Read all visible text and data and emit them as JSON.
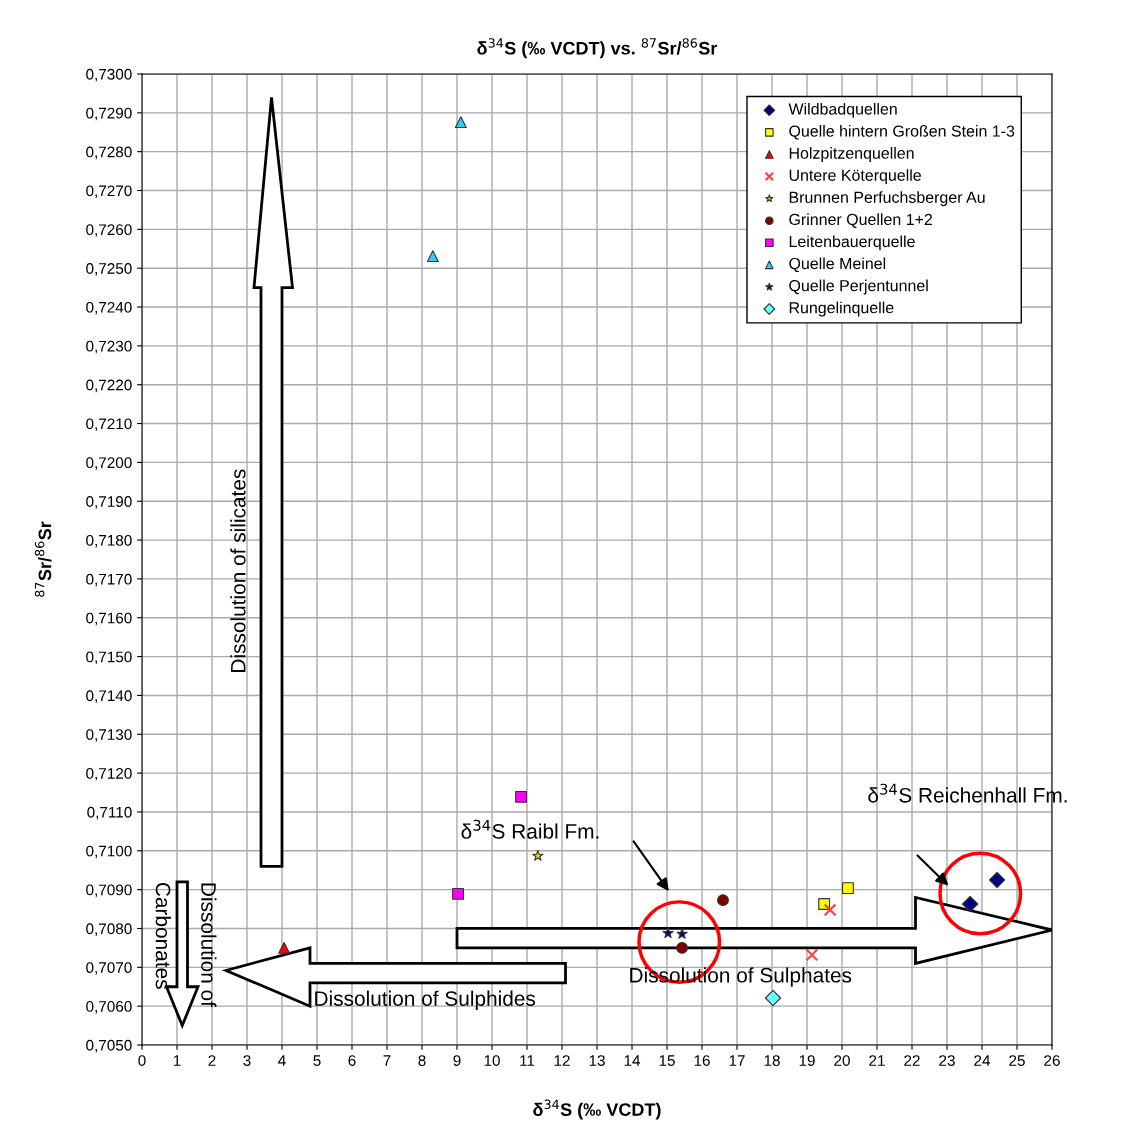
{
  "chart_data": {
    "type": "scatter",
    "title": "δ$^{34}$S (‰ VCDT) vs. $^{87}$Sr/$^{86}$Sr",
    "xlabel": "δ$^{34}$S (‰ VCDT)",
    "ylabel": "$^{87}$Sr/$^{86}$Sr",
    "series": [
      {
        "name": "Wildbadquellen",
        "color": "#000080",
        "marker": "diamond",
        "x": [
          23.66,
          24.43
        ],
        "values": [
          0.70863,
          0.70925
        ]
      },
      {
        "name": "Quelle hintern Großen Stein 1-3",
        "color": "#ffff00",
        "marker": "square",
        "x": [
          19.49,
          20.17
        ],
        "values": [
          0.70863,
          0.70904
        ]
      },
      {
        "name": "Holzpitzenquellen",
        "color": "#ff0000",
        "marker": "triangle",
        "x": [
          4.06
        ],
        "values": [
          0.7075
        ]
      },
      {
        "name": "Untere Köterquelle",
        "color": "#ff4040",
        "marker": "cross",
        "x": [
          19.66,
          19.14
        ],
        "values": [
          0.70848,
          0.70732
        ]
      },
      {
        "name": "Brunnen Perfuchsberger Au",
        "color": "#e0e000",
        "marker": "star",
        "x": [
          11.31
        ],
        "values": [
          0.70987
        ]
      },
      {
        "name": "Grinner Quellen 1+2",
        "color": "#800000",
        "marker": "circle",
        "x": [
          16.6,
          15.43
        ],
        "values": [
          0.70873,
          0.7075
        ]
      },
      {
        "name": "Leitenbauerquelle",
        "color": "#ff00ff",
        "marker": "square",
        "x": [
          10.83,
          9.03
        ],
        "values": [
          0.71139,
          0.70889
        ]
      },
      {
        "name": "Quelle Meinel",
        "color": "#33ccff",
        "marker": "triangle",
        "x": [
          9.11,
          8.31
        ],
        "values": [
          0.72876,
          0.72531
        ]
      },
      {
        "name": "Quelle Perjentunnel",
        "color": "#000080",
        "marker": "star",
        "x": [
          15.03,
          15.43
        ],
        "values": [
          0.70788,
          0.70786
        ]
      },
      {
        "name": "Rungelinquelle",
        "color": "#66ffff",
        "marker": "diamond",
        "x": [
          18.03
        ],
        "values": [
          0.70621
        ]
      }
    ],
    "xlim": [
      0,
      26
    ],
    "xticks": [
      0,
      1,
      2,
      3,
      4,
      5,
      6,
      7,
      8,
      9,
      10,
      11,
      12,
      13,
      14,
      15,
      16,
      17,
      18,
      19,
      20,
      21,
      22,
      23,
      24,
      25,
      26
    ],
    "ylim": [
      0.705,
      0.73
    ],
    "yticks": [
      {
        "value": 0.705,
        "label": "0,7050"
      },
      {
        "value": 0.706,
        "label": "0,7060"
      },
      {
        "value": 0.707,
        "label": "0,7070"
      },
      {
        "value": 0.708,
        "label": "0,7080"
      },
      {
        "value": 0.709,
        "label": "0,7090"
      },
      {
        "value": 0.71,
        "label": "0,7100"
      },
      {
        "value": 0.711,
        "label": "0,7110"
      },
      {
        "value": 0.712,
        "label": "0,7120"
      },
      {
        "value": 0.713,
        "label": "0,7130"
      },
      {
        "value": 0.714,
        "label": "0,7140"
      },
      {
        "value": 0.715,
        "label": "0,7150"
      },
      {
        "value": 0.716,
        "label": "0,7160"
      },
      {
        "value": 0.717,
        "label": "0,7170"
      },
      {
        "value": 0.718,
        "label": "0,7180"
      },
      {
        "value": 0.719,
        "label": "0,7190"
      },
      {
        "value": 0.72,
        "label": "0,7200"
      },
      {
        "value": 0.721,
        "label": "0,7210"
      },
      {
        "value": 0.722,
        "label": "0,7220"
      },
      {
        "value": 0.723,
        "label": "0,7230"
      },
      {
        "value": 0.724,
        "label": "0,7240"
      },
      {
        "value": 0.725,
        "label": "0,7250"
      },
      {
        "value": 0.726,
        "label": "0,7260"
      },
      {
        "value": 0.727,
        "label": "0,7270"
      },
      {
        "value": 0.728,
        "label": "0,7280"
      },
      {
        "value": 0.729,
        "label": "0,7290"
      },
      {
        "value": 0.73,
        "label": "0,7300"
      }
    ],
    "grid": true,
    "legend": "top right",
    "annotations": [
      "Dissolution of silicates",
      "Dissolution of Carbonates",
      "Dissolution of Sulphides",
      "Dissolution of Sulphates",
      "δ$^{34}$S Raibl Fm.",
      "δ$^{34}$S Reichenhall Fm."
    ]
  }
}
